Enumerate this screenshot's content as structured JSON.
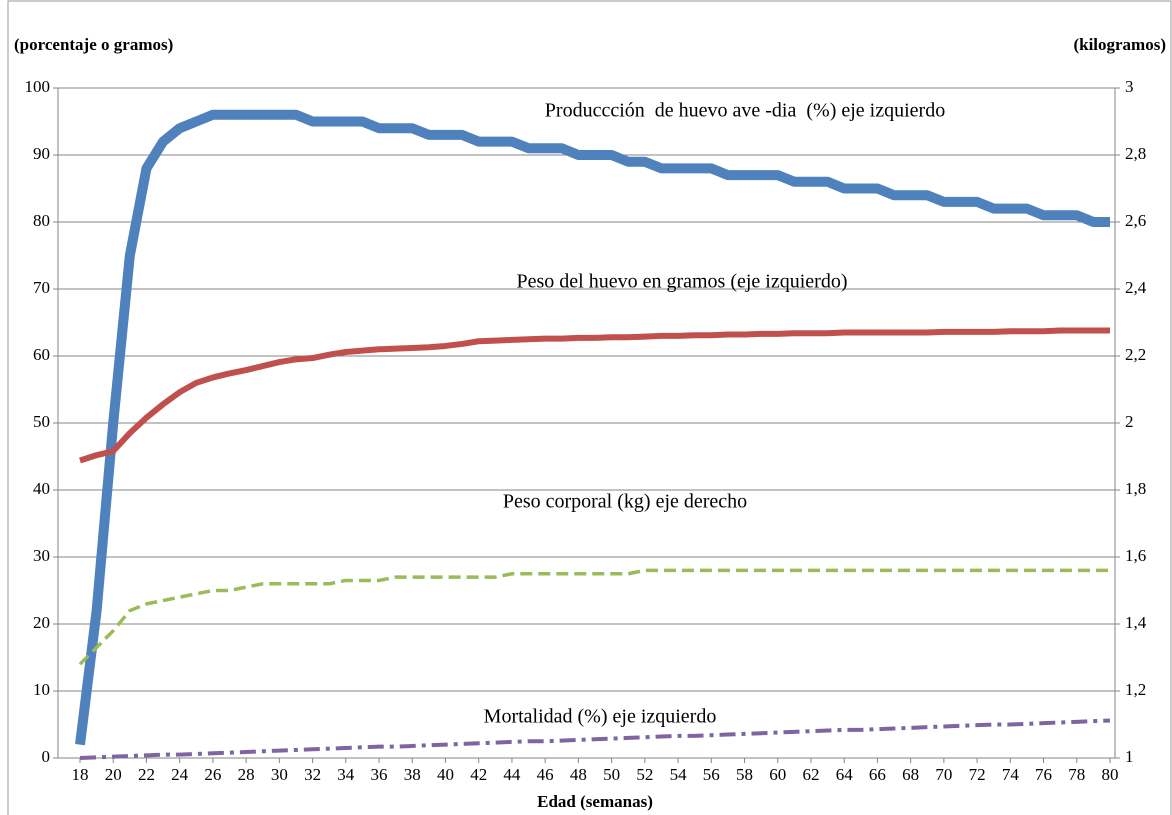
{
  "chart_data": {
    "type": "line",
    "ylabel": "(porcentaje o gramos)",
    "y2label": "(kilogramos)",
    "xlabel": "Edad (semanas)",
    "x": [
      18,
      19,
      20,
      21,
      22,
      23,
      24,
      25,
      26,
      27,
      28,
      29,
      30,
      31,
      32,
      33,
      34,
      35,
      36,
      37,
      38,
      39,
      40,
      41,
      42,
      43,
      44,
      45,
      46,
      47,
      48,
      49,
      50,
      51,
      52,
      53,
      54,
      55,
      56,
      57,
      58,
      59,
      60,
      61,
      62,
      63,
      64,
      65,
      66,
      67,
      68,
      69,
      70,
      71,
      72,
      73,
      74,
      75,
      76,
      77,
      78,
      79,
      80
    ],
    "xlim": [
      18,
      80
    ],
    "xticks": [
      18,
      20,
      22,
      24,
      26,
      28,
      30,
      32,
      34,
      36,
      38,
      40,
      42,
      44,
      46,
      48,
      50,
      52,
      54,
      56,
      58,
      60,
      62,
      64,
      66,
      68,
      70,
      72,
      74,
      76,
      78,
      80
    ],
    "ylim": [
      0,
      100
    ],
    "yticks": [
      0,
      10,
      20,
      30,
      40,
      50,
      60,
      70,
      80,
      90,
      100
    ],
    "y2lim": [
      1,
      3
    ],
    "y2ticks": [
      1,
      {
        "value": 1.2,
        "label": "1,2"
      },
      {
        "value": 1.4,
        "label": "1,4"
      },
      {
        "value": 1.6,
        "label": "1,6"
      },
      {
        "value": 1.8,
        "label": "1,8"
      },
      2,
      {
        "value": 2.2,
        "label": "2,2"
      },
      {
        "value": 2.4,
        "label": "2,4"
      },
      {
        "value": 2.6,
        "label": "2,6"
      },
      {
        "value": 2.8,
        "label": "2,8"
      },
      3
    ],
    "grid": true,
    "series": [
      {
        "name": "Produccción  de huevo ave -dia  (%) eje izquierdo",
        "color": "#4f81bd",
        "values": [
          2,
          22,
          50,
          75,
          88,
          92,
          94,
          95,
          96,
          96,
          96,
          96,
          96,
          96,
          95,
          95,
          95,
          95,
          94,
          94,
          94,
          93,
          93,
          93,
          92,
          92,
          92,
          91,
          91,
          91,
          90,
          90,
          90,
          89,
          89,
          88,
          88,
          88,
          88,
          87,
          87,
          87,
          87,
          86,
          86,
          86,
          85,
          85,
          85,
          84,
          84,
          84,
          83,
          83,
          83,
          82,
          82,
          82,
          81,
          81,
          81,
          80,
          80
        ]
      },
      {
        "name": "Peso del huevo en gramos (eje izquierdo)",
        "color": "#c0504d",
        "values": [
          44.4,
          45.2,
          45.8,
          48.5,
          50.8,
          52.8,
          54.6,
          56,
          56.8,
          57.4,
          57.9,
          58.5,
          59.1,
          59.5,
          59.7,
          60.2,
          60.6,
          60.8,
          61,
          61.1,
          61.2,
          61.3,
          61.5,
          61.8,
          62.2,
          62.3,
          62.4,
          62.5,
          62.6,
          62.6,
          62.7,
          62.7,
          62.8,
          62.8,
          62.9,
          63,
          63,
          63.1,
          63.1,
          63.2,
          63.2,
          63.3,
          63.3,
          63.4,
          63.4,
          63.4,
          63.5,
          63.5,
          63.5,
          63.5,
          63.5,
          63.5,
          63.6,
          63.6,
          63.6,
          63.6,
          63.7,
          63.7,
          63.7,
          63.8,
          63.8,
          63.8,
          63.8
        ]
      },
      {
        "name": "Peso corporal (kg) eje derecho",
        "color": "#9bbb59",
        "axis": "y2",
        "values": [
          1.28,
          1.33,
          1.38,
          1.44,
          1.46,
          1.47,
          1.48,
          1.49,
          1.5,
          1.5,
          1.51,
          1.52,
          1.52,
          1.52,
          1.52,
          1.52,
          1.53,
          1.53,
          1.53,
          1.54,
          1.54,
          1.54,
          1.54,
          1.54,
          1.54,
          1.54,
          1.55,
          1.55,
          1.55,
          1.55,
          1.55,
          1.55,
          1.55,
          1.55,
          1.56,
          1.56,
          1.56,
          1.56,
          1.56,
          1.56,
          1.56,
          1.56,
          1.56,
          1.56,
          1.56,
          1.56,
          1.56,
          1.56,
          1.56,
          1.56,
          1.56,
          1.56,
          1.56,
          1.56,
          1.56,
          1.56,
          1.56,
          1.56,
          1.56,
          1.56,
          1.56,
          1.56,
          1.56
        ]
      },
      {
        "name": "Mortalidad (%) eje izquierdo",
        "color": "#8064a2",
        "values": [
          0,
          0.1,
          0.2,
          0.3,
          0.4,
          0.5,
          0.5,
          0.6,
          0.7,
          0.8,
          0.9,
          1.0,
          1.1,
          1.2,
          1.3,
          1.4,
          1.5,
          1.6,
          1.7,
          1.7,
          1.8,
          1.9,
          2.0,
          2.1,
          2.2,
          2.3,
          2.4,
          2.5,
          2.5,
          2.6,
          2.7,
          2.8,
          2.9,
          3.0,
          3.1,
          3.2,
          3.3,
          3.3,
          3.4,
          3.5,
          3.6,
          3.7,
          3.8,
          3.9,
          4.0,
          4.1,
          4.2,
          4.2,
          4.3,
          4.4,
          4.5,
          4.6,
          4.7,
          4.8,
          4.9,
          5.0,
          5.0,
          5.1,
          5.2,
          5.3,
          5.4,
          5.5,
          5.6
        ]
      }
    ]
  }
}
